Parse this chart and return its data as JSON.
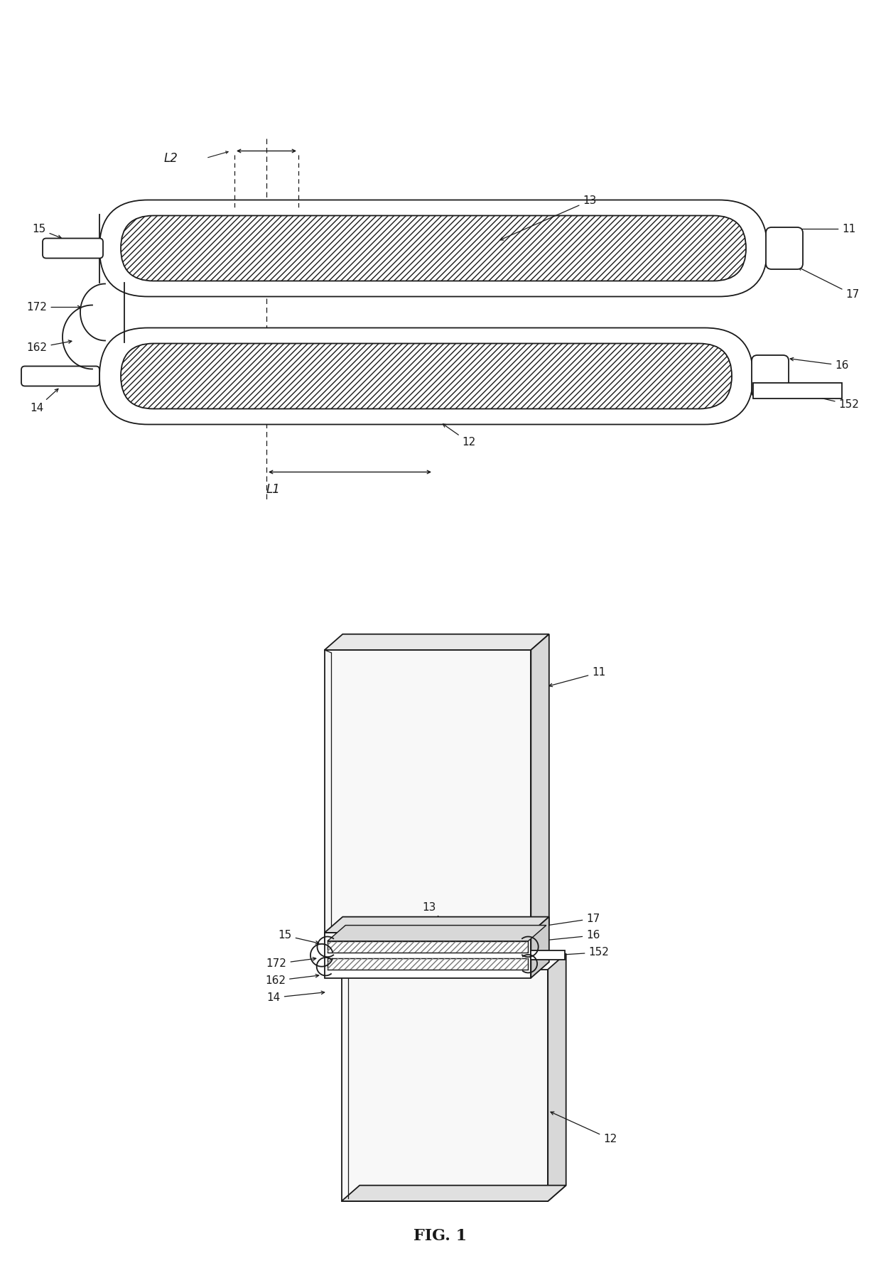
{
  "fig_label": "FIG. 1",
  "bg_color": "#ffffff",
  "line_color": "#1a1a1a",
  "lw": 1.3
}
